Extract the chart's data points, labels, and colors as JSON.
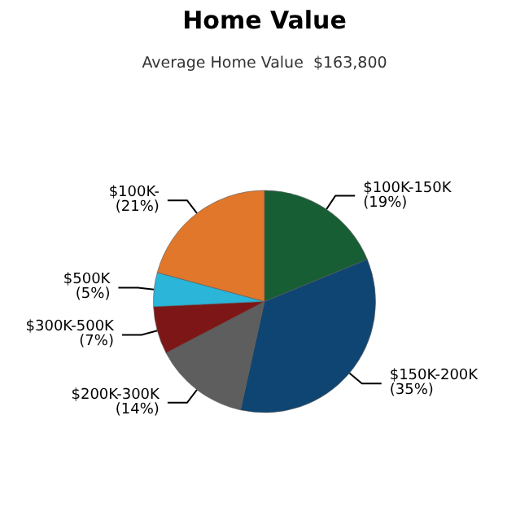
{
  "chart_data": {
    "type": "pie",
    "title": "Home Value",
    "subtitle": "Average Home Value  $163,800",
    "categories": [
      "$100K-150K",
      "$150K-200K",
      "$200K-300K",
      "$300K-500K",
      "$500K",
      "$100K-"
    ],
    "values": [
      19,
      35,
      14,
      7,
      5,
      21
    ],
    "value_labels": [
      "(19%)",
      "(35%)",
      "(14%)",
      "(7%)",
      "(5%)",
      "(21%)"
    ],
    "colors": [
      "#175e35",
      "#0f4573",
      "#5e5e5e",
      "#7d1717",
      "#2bb5d8",
      "#e0772a"
    ],
    "legend": false
  }
}
